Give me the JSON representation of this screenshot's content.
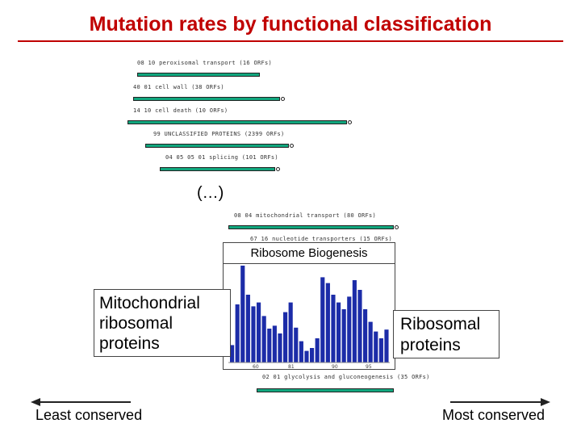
{
  "title": "Mutation rates by functional classification",
  "rows_top": [
    {
      "label": "08 10 peroxisomal transport (16 ORFs)",
      "color": "#11a77e"
    },
    {
      "label": "40 01 cell wall (38 ORFs)",
      "color": "#11a77e"
    },
    {
      "label": "14 10 cell death (10 ORFs)",
      "color": "#11a77e"
    },
    {
      "label": "99 UNCLASSIFIED PROTEINS (2399 ORFs)",
      "color": "#11a77e"
    },
    {
      "label": "04 05 05 01 splicing (101 ORFs)",
      "color": "#11a77e"
    }
  ],
  "ellipsis": "(…)",
  "rows_bottom": [
    {
      "label": "08 04 mitochondrial transport (80 ORFs)",
      "color": "#11a77e"
    },
    {
      "label": "67 16 nucleotide transporters (15 ORFs)",
      "color": "#cc2222"
    },
    {
      "label": "02 01 glycolysis and gluconeogenesis (35 ORFs)",
      "color": "#11a77e"
    }
  ],
  "callouts": {
    "left": {
      "line1": "Mitochondrial",
      "line2": "ribosomal",
      "line3": "proteins"
    },
    "right": {
      "line1": "Ribosomal",
      "line2": "proteins"
    }
  },
  "chart_data": {
    "type": "bar",
    "title": "Ribosome Biogenesis",
    "x_tick_labels": [
      "60",
      "81",
      "90",
      "95"
    ],
    "values": [
      0.18,
      0.6,
      1.0,
      0.7,
      0.58,
      0.62,
      0.48,
      0.35,
      0.38,
      0.3,
      0.52,
      0.62,
      0.36,
      0.22,
      0.12,
      0.15,
      0.25,
      0.88,
      0.82,
      0.7,
      0.62,
      0.55,
      0.68,
      0.85,
      0.75,
      0.55,
      0.42,
      0.32,
      0.25,
      0.34
    ],
    "bar_color": "#1c2ca8"
  },
  "footer": {
    "left_label": "Least conserved",
    "right_label": "Most conserved"
  }
}
